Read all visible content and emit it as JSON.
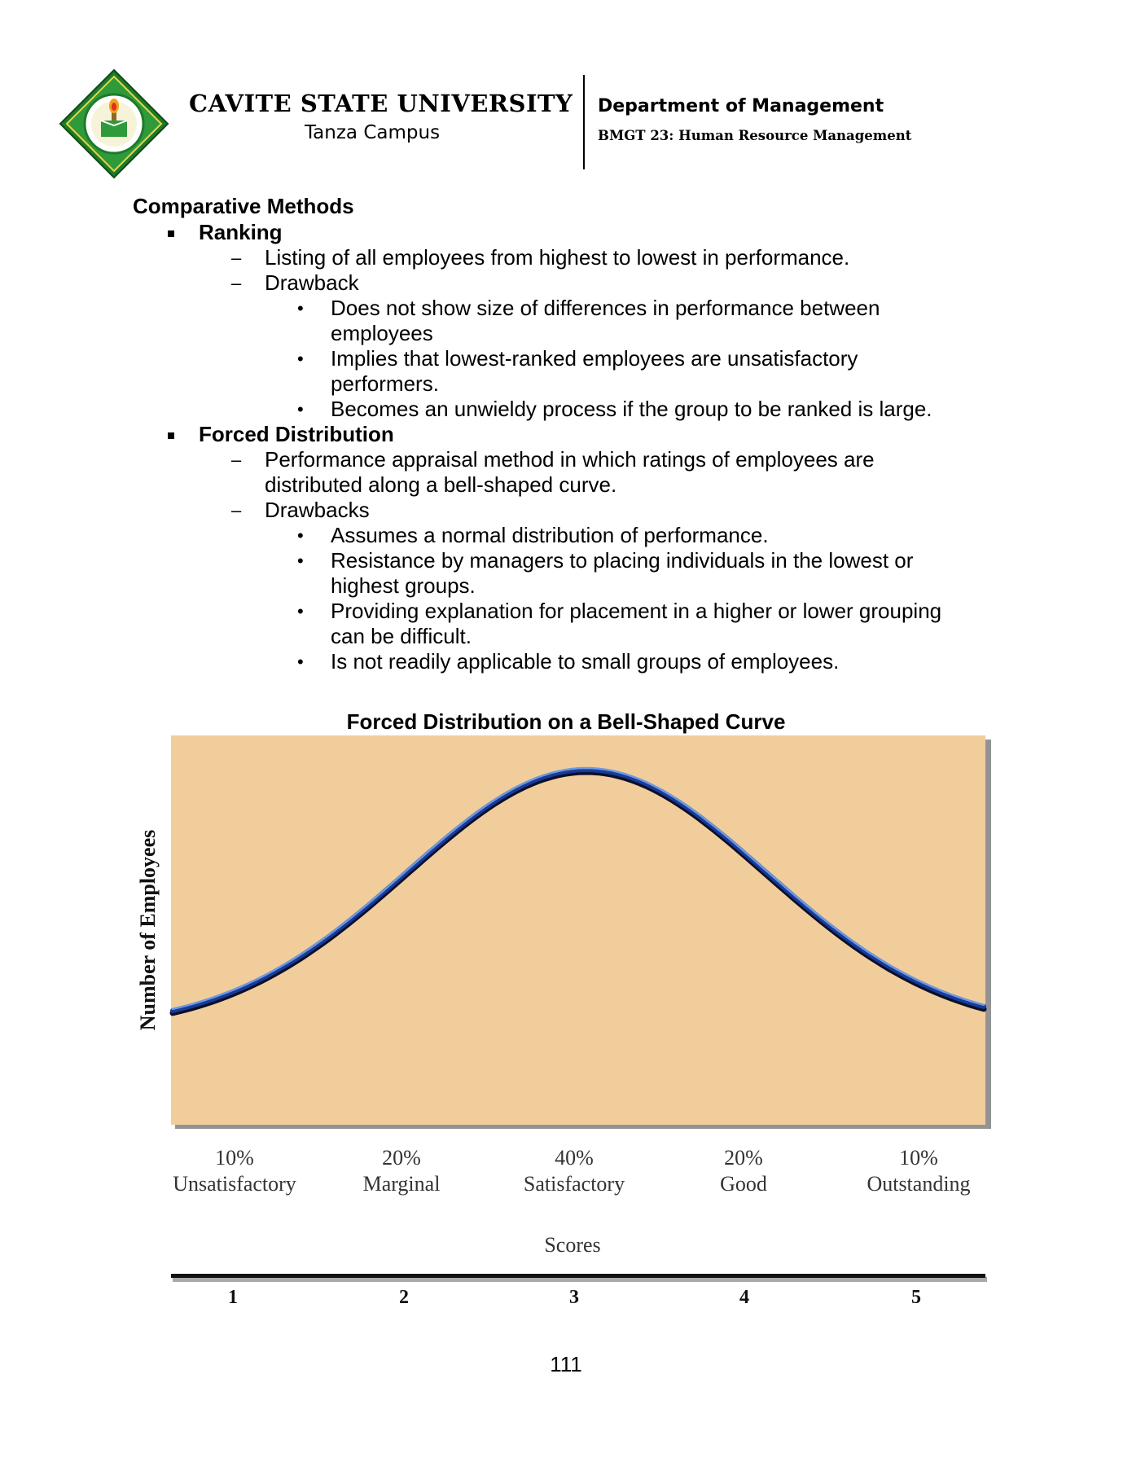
{
  "header": {
    "university": "CAVITE STATE UNIVERSITY",
    "campus": "Tanza Campus",
    "department": "Department of Management",
    "course": "BMGT 23: Human Resource Management"
  },
  "content": {
    "section_title": "Comparative Methods",
    "ranking": {
      "heading": "Ranking",
      "definition": "Listing of all employees from highest to lowest in performance.",
      "drawback_label": "Drawback",
      "drawbacks": [
        [
          "Does not show size of differences in performance between",
          "employees"
        ],
        [
          "Implies that lowest-ranked employees are unsatisfactory",
          "performers."
        ],
        [
          "Becomes an unwieldy process if the group to be ranked is large."
        ]
      ]
    },
    "forced_distribution": {
      "heading": "Forced Distribution",
      "definition": [
        "Performance appraisal method in which ratings of employees are",
        "distributed along a bell-shaped curve."
      ],
      "drawback_label": "Drawbacks",
      "drawbacks": [
        [
          "Assumes a normal distribution of performance."
        ],
        [
          "Resistance by managers to placing individuals in the lowest or",
          "highest groups."
        ],
        [
          "Providing explanation for placement in a higher or lower grouping",
          "can be difficult."
        ],
        [
          "Is not readily applicable to small groups of employees."
        ]
      ]
    }
  },
  "chart_data": {
    "type": "line",
    "title": "Forced Distribution on a Bell-Shaped Curve",
    "ylabel": "Number of Employees",
    "xlabel": "Scores",
    "categories": [
      {
        "percent": "10%",
        "label": "Unsatisfactory",
        "score": "1"
      },
      {
        "percent": "20%",
        "label": "Marginal",
        "score": "2"
      },
      {
        "percent": "40%",
        "label": "Satisfactory",
        "score": "3"
      },
      {
        "percent": "20%",
        "label": "Good",
        "score": "4"
      },
      {
        "percent": "10%",
        "label": "Outstanding",
        "score": "5"
      }
    ],
    "x_range": [
      0.5,
      5.3
    ],
    "curve": "normal",
    "peak_x": 2.9,
    "colors": {
      "background": "#f2cd9c",
      "curve": "#1a3a9a",
      "curve_highlight": "#6a9ae0"
    },
    "grid": false
  },
  "page_number": "111"
}
